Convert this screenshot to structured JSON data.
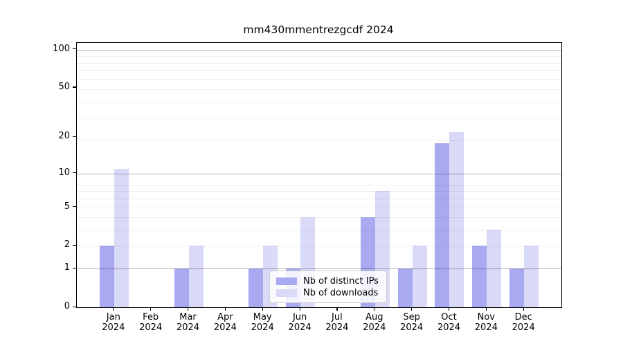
{
  "title": "mm430mmentrezgcdf 2024",
  "colors": {
    "distinct_ips": "#a9a9f2",
    "downloads": "#d9d9f8",
    "axis": "#000000",
    "grid_major": "#b3b3b3",
    "grid_minor": "#ececec"
  },
  "legend": {
    "items": [
      {
        "label": "Nb of distinct IPs"
      },
      {
        "label": "Nb of downloads"
      }
    ]
  },
  "chart_data": {
    "type": "bar",
    "title": "mm430mmentrezgcdf 2024",
    "categories": [
      "Jan",
      "Feb",
      "Mar",
      "Apr",
      "May",
      "Jun",
      "Jul",
      "Aug",
      "Sep",
      "Oct",
      "Nov",
      "Dec"
    ],
    "category_sublabel": "2024",
    "series": [
      {
        "name": "Nb of distinct IPs",
        "color": "#a9a9f2",
        "values": [
          2,
          0,
          1,
          0,
          1,
          1,
          0,
          4,
          1,
          18,
          2,
          1
        ]
      },
      {
        "name": "Nb of downloads",
        "color": "#d9d9f8",
        "values": [
          11,
          0,
          2,
          0,
          2,
          4,
          0,
          7,
          2,
          22,
          3,
          2
        ]
      }
    ],
    "xlabel": "",
    "ylabel": "",
    "yscale": "log10(value+1)",
    "yticks": [
      0,
      1,
      2,
      5,
      10,
      20,
      50,
      100
    ],
    "ylim": [
      0,
      113
    ],
    "grid": "on",
    "grid_major_at": [
      1,
      10,
      100
    ],
    "grid_minor_at": [
      2,
      3,
      4,
      5,
      6,
      7,
      8,
      19,
      29,
      39,
      49,
      59,
      69,
      79,
      89
    ],
    "legend_position": "lower-center-inside"
  }
}
